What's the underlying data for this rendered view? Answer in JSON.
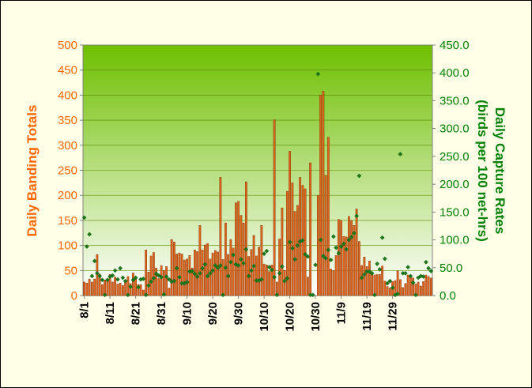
{
  "chart_data": {
    "type": "bar",
    "title": "",
    "ylabel": "Daily Banding Totals",
    "y2label": "Daily Capture Rates (birds per 100 net-hrs)",
    "ylim": [
      0,
      500
    ],
    "y2lim": [
      0,
      450
    ],
    "yticks": [
      "0",
      "50",
      "100",
      "150",
      "200",
      "250",
      "300",
      "350",
      "400",
      "450",
      "500"
    ],
    "y2ticks": [
      "0.0",
      "50.0",
      "100.0",
      "150.0",
      "200.0",
      "250.0",
      "300.0",
      "350.0",
      "400.0",
      "450.0"
    ],
    "xtick_labels": [
      "8/1",
      "8/11",
      "8/21",
      "8/31",
      "9/10",
      "9/20",
      "9/30",
      "10/10",
      "10/20",
      "10/30",
      "11/9",
      "11/19",
      "11/29"
    ],
    "grid": "horizontal",
    "colors": {
      "plot_gradient_top": "#6ebf00",
      "plot_gradient_bottom": "#ffffff",
      "bars": "#e0641a",
      "bar_edge": "#7a2a00",
      "markers": "#1a7a1a",
      "left_axis_text": "#ff6600",
      "right_axis_text": "#008000"
    },
    "series": [
      {
        "name": "Daily Banding Totals",
        "axis": "left",
        "mark": "bar",
        "values": [
          27,
          25,
          33,
          27,
          33,
          82,
          43,
          22,
          31,
          30,
          42,
          27,
          37,
          23,
          25,
          20,
          29,
          38,
          24,
          45,
          33,
          22,
          22,
          11,
          91,
          47,
          79,
          86,
          55,
          34,
          60,
          50,
          58,
          15,
          112,
          107,
          83,
          85,
          83,
          71,
          73,
          80,
          55,
          91,
          88,
          140,
          91,
          101,
          104,
          73,
          85,
          90,
          87,
          236,
          72,
          145,
          82,
          112,
          95,
          185,
          188,
          160,
          145,
          227,
          78,
          92,
          120,
          79,
          97,
          140,
          63,
          61,
          48,
          61,
          351,
          27,
          113,
          175,
          50,
          208,
          288,
          225,
          168,
          180,
          236,
          220,
          213,
          37,
          265,
          0,
          0,
          200,
          400,
          408,
          240,
          316,
          53,
          50,
          80,
          152,
          150,
          118,
          117,
          158,
          150,
          140,
          173,
          108,
          60,
          77,
          58,
          69,
          46,
          41,
          42,
          42,
          59,
          29,
          18,
          15,
          28,
          30,
          49,
          32,
          16,
          24,
          41,
          36,
          35,
          23,
          27,
          19,
          28,
          41,
          38,
          35
        ]
      },
      {
        "name": "Daily Capture Rates",
        "axis": "right",
        "mark": "scatter",
        "values": [
          140,
          88,
          110,
          35,
          62,
          40,
          35,
          28,
          1,
          28,
          34,
          36,
          45,
          29,
          49,
          32,
          26,
          1,
          16,
          28,
          32,
          15,
          29,
          30,
          1,
          18,
          25,
          31,
          39,
          36,
          33,
          2,
          34,
          29,
          25,
          26,
          49,
          33,
          22,
          22,
          24,
          43,
          44,
          39,
          34,
          40,
          49,
          56,
          35,
          40,
          45,
          54,
          50,
          54,
          1,
          50,
          35,
          60,
          73,
          56,
          54,
          65,
          58,
          83,
          35,
          45,
          53,
          27,
          27,
          29,
          75,
          80,
          51,
          46,
          33,
          1,
          40,
          52,
          26,
          31,
          96,
          85,
          65,
          90,
          97,
          99,
          74,
          70,
          1,
          1,
          55,
          398,
          100,
          71,
          67,
          82,
          64,
          106,
          86,
          76,
          88,
          93,
          83,
          100,
          105,
          112,
          143,
          215,
          32,
          38,
          43,
          43,
          40,
          1,
          57,
          47,
          104,
          66,
          22,
          26,
          14,
          1,
          3,
          254,
          40,
          40,
          51,
          35,
          23,
          1,
          32,
          35,
          34,
          60,
          49,
          44
        ]
      }
    ]
  }
}
